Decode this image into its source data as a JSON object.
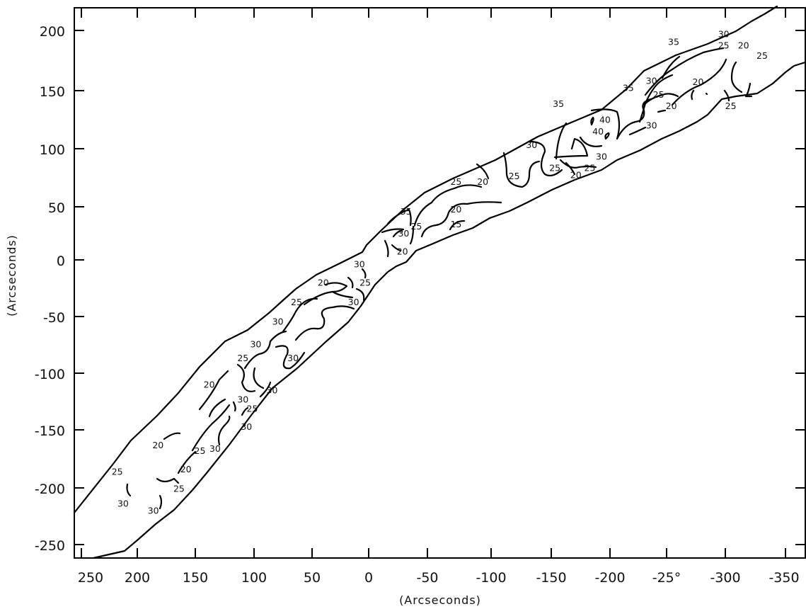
{
  "figure": {
    "x_axis": {
      "title": "(Arcseconds)",
      "ticks": [
        "250",
        "200",
        "150",
        "100",
        "50",
        "0",
        "-50",
        "-100",
        "-150",
        "-200",
        "-25°",
        "-300",
        "-350"
      ]
    },
    "y_axis": {
      "title": "(Arcseconds)",
      "ticks": [
        "200",
        "150",
        "100",
        "50",
        "0",
        "-50",
        "-100",
        "-150",
        "-200",
        "-250"
      ]
    }
  },
  "contour_labels": [
    {
      "text": "30",
      "x": -305,
      "y": 197
    },
    {
      "text": "35",
      "x": -262,
      "y": 190
    },
    {
      "text": "25",
      "x": -305,
      "y": 187
    },
    {
      "text": "20",
      "x": -322,
      "y": 187
    },
    {
      "text": "25",
      "x": -338,
      "y": 178
    },
    {
      "text": "30",
      "x": -243,
      "y": 156
    },
    {
      "text": "35",
      "x": -223,
      "y": 150
    },
    {
      "text": "20",
      "x": -283,
      "y": 155
    },
    {
      "text": "25",
      "x": -249,
      "y": 144
    },
    {
      "text": "20",
      "x": -260,
      "y": 134
    },
    {
      "text": "25",
      "x": -311,
      "y": 134
    },
    {
      "text": "35",
      "x": -163,
      "y": 136
    },
    {
      "text": "40",
      "x": -203,
      "y": 122
    },
    {
      "text": "40",
      "x": -197,
      "y": 112
    },
    {
      "text": "30",
      "x": -243,
      "y": 117
    },
    {
      "text": "30",
      "x": -140,
      "y": 100
    },
    {
      "text": "30",
      "x": -200,
      "y": 90
    },
    {
      "text": "25",
      "x": -190,
      "y": 80
    },
    {
      "text": "25",
      "x": -160,
      "y": 80
    },
    {
      "text": "20",
      "x": -178,
      "y": 74
    },
    {
      "text": "25",
      "x": -125,
      "y": 73
    },
    {
      "text": "25",
      "x": -75,
      "y": 68
    },
    {
      "text": "20",
      "x": -98,
      "y": 68
    },
    {
      "text": "20",
      "x": -75,
      "y": 44
    },
    {
      "text": "35",
      "x": -32,
      "y": 42
    },
    {
      "text": "25",
      "x": -41,
      "y": 29
    },
    {
      "text": "30",
      "x": -30,
      "y": 23
    },
    {
      "text": "15",
      "x": -75,
      "y": 31
    },
    {
      "text": "20",
      "x": -29,
      "y": 7
    },
    {
      "text": "30",
      "x": 8,
      "y": -4
    },
    {
      "text": "25",
      "x": 3,
      "y": -20
    },
    {
      "text": "20",
      "x": 39,
      "y": -20
    },
    {
      "text": "30",
      "x": 13,
      "y": -37
    },
    {
      "text": "25",
      "x": 62,
      "y": -37
    },
    {
      "text": "30",
      "x": 78,
      "y": -54
    },
    {
      "text": "30",
      "x": 97,
      "y": -74
    },
    {
      "text": "30",
      "x": 65,
      "y": -86
    },
    {
      "text": "25",
      "x": 108,
      "y": -86
    },
    {
      "text": "20",
      "x": 137,
      "y": -109
    },
    {
      "text": "30",
      "x": 83,
      "y": -114
    },
    {
      "text": "30",
      "x": 108,
      "y": -122
    },
    {
      "text": "25",
      "x": 100,
      "y": -130
    },
    {
      "text": "30",
      "x": 105,
      "y": -146
    },
    {
      "text": "20",
      "x": 181,
      "y": -162
    },
    {
      "text": "25",
      "x": 145,
      "y": -167
    },
    {
      "text": "30",
      "x": 132,
      "y": -165
    },
    {
      "text": "20",
      "x": 157,
      "y": -183
    },
    {
      "text": "25",
      "x": 216,
      "y": -185
    },
    {
      "text": "25",
      "x": 163,
      "y": -200
    },
    {
      "text": "30",
      "x": 211,
      "y": -213
    },
    {
      "text": "30",
      "x": 185,
      "y": -219
    }
  ]
}
